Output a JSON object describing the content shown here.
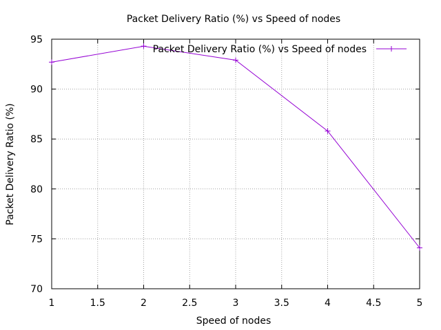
{
  "chart_data": {
    "type": "line",
    "title": "Packet Delivery Ratio (%) vs Speed of nodes",
    "xlabel": "Speed of nodes",
    "ylabel": "Packet Delivery Ratio (%)",
    "xlim": [
      1,
      5
    ],
    "ylim": [
      70,
      95
    ],
    "xticks": [
      1,
      1.5,
      2,
      2.5,
      3,
      3.5,
      4,
      4.5,
      5
    ],
    "xtick_labels": [
      "1",
      "1.5",
      "2",
      "2.5",
      "3",
      "3.5",
      "4",
      "4.5",
      "5"
    ],
    "yticks": [
      70,
      75,
      80,
      85,
      90,
      95
    ],
    "ytick_labels": [
      "70",
      "75",
      "80",
      "85",
      "90",
      "95"
    ],
    "grid": true,
    "legend_position": "top-right",
    "series": [
      {
        "name": "Packet Delivery Ratio (%) vs Speed of nodes",
        "color": "#9400d3",
        "marker": "plus",
        "x": [
          1,
          2,
          3,
          4,
          5
        ],
        "y": [
          92.7,
          94.3,
          92.9,
          85.8,
          74.1
        ]
      }
    ]
  }
}
